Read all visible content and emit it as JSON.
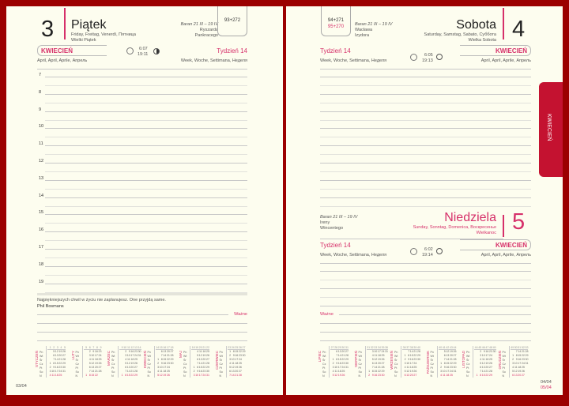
{
  "left": {
    "day_number": "3",
    "day_name": "Piątek",
    "day_translations": "Friday, Freitag, Venerdì, Пятница",
    "holiday": "Wielki Piątek",
    "zodiac": "Baran 21 III – 19 IV",
    "namedays": [
      "Ryszarda",
      "Pankracego"
    ],
    "day_count": "93+272",
    "month": "KWIECIEŃ",
    "month_translations": "April, April, Aprile, Апрель",
    "week": "Tydzień 14",
    "week_translations": "Week, Woche, Settimana, Неделя",
    "sunrise": "6:07",
    "sunset": "19:11",
    "hours": [
      "7",
      "8",
      "9",
      "10",
      "11",
      "12",
      "13",
      "14",
      "15",
      "16",
      "17",
      "18",
      "19"
    ],
    "quote": "Najpiękniejszych chwil w życiu nie zaplanujesz. One przyjdą same.",
    "quote_author": "Phil Bosmans",
    "important": "Ważne",
    "page_date": "03/04"
  },
  "right": {
    "box_count": "94+271",
    "box_count2": "95+270",
    "sat": {
      "day_number": "4",
      "day_name": "Sobota",
      "day_translations": "Saturday, Samstag, Sabato, Суббота",
      "holiday": "Wielka Sobota",
      "zodiac": "Baran 21 III – 19 IV",
      "namedays": [
        "Wacława",
        "Izydora"
      ],
      "week": "Tydzień 14",
      "week_translations": "Week, Woche, Settimana, Неделя",
      "sunrise": "6:05",
      "sunset": "19:13",
      "month": "KWIECIEŃ",
      "month_translations": "April, April, Aprile, Апрель"
    },
    "sun": {
      "day_number": "5",
      "day_name": "Niedziela",
      "day_translations": "Sunday, Sonntag, Domenica, Воскресенье",
      "holiday": "Wielkanoc",
      "zodiac": "Baran 21 III – 19 IV",
      "namedays": [
        "Ireny",
        "Wincentego"
      ],
      "week": "Tydzień 14",
      "week_translations": "Week, Woche, Settimana, Неделя",
      "sunrise": "6:02",
      "sunset": "19:14",
      "month": "KWIECIEŃ",
      "month_translations": "April, April, Aprile, Апрель"
    },
    "important": "Ważne",
    "page_date_sat": "04/04",
    "page_date_sun": "05/04"
  },
  "tab": "KWIECIEŃ",
  "weekday_abbr": [
    "Pn",
    "Wt",
    "Śr",
    "Cz",
    "Pt",
    "So",
    "N"
  ],
  "calendars_left": [
    {
      "name": "STYCZEŃ",
      "start": 3,
      "days": 31,
      "week": 1
    },
    {
      "name": "LUTY",
      "start": 6,
      "days": 28,
      "week": 5
    },
    {
      "name": "MARZEC",
      "start": 6,
      "days": 31,
      "week": 9
    },
    {
      "name": "KWIECIEŃ",
      "start": 2,
      "days": 30,
      "week": 14
    },
    {
      "name": "MAJ",
      "start": 4,
      "days": 31,
      "week": 18
    },
    {
      "name": "CZERWIEC",
      "start": 0,
      "days": 30,
      "week": 23
    }
  ],
  "calendars_right": [
    {
      "name": "LIPIEC",
      "start": 2,
      "days": 31,
      "week": 27
    },
    {
      "name": "SIERPIEŃ",
      "start": 5,
      "days": 31,
      "week": 31
    },
    {
      "name": "WRZESIEŃ",
      "start": 1,
      "days": 30,
      "week": 36
    },
    {
      "name": "PAŹDZIERNIK",
      "start": 3,
      "days": 31,
      "week": 40
    },
    {
      "name": "LISTOPAD",
      "start": 6,
      "days": 30,
      "week": 44
    },
    {
      "name": "GRUDZIEŃ",
      "start": 1,
      "days": 31,
      "week": 49
    }
  ],
  "colors": {
    "accent": "#d6306a",
    "cover": "#9b0000",
    "paper": "#fdfdef",
    "tab": "#c41230"
  }
}
